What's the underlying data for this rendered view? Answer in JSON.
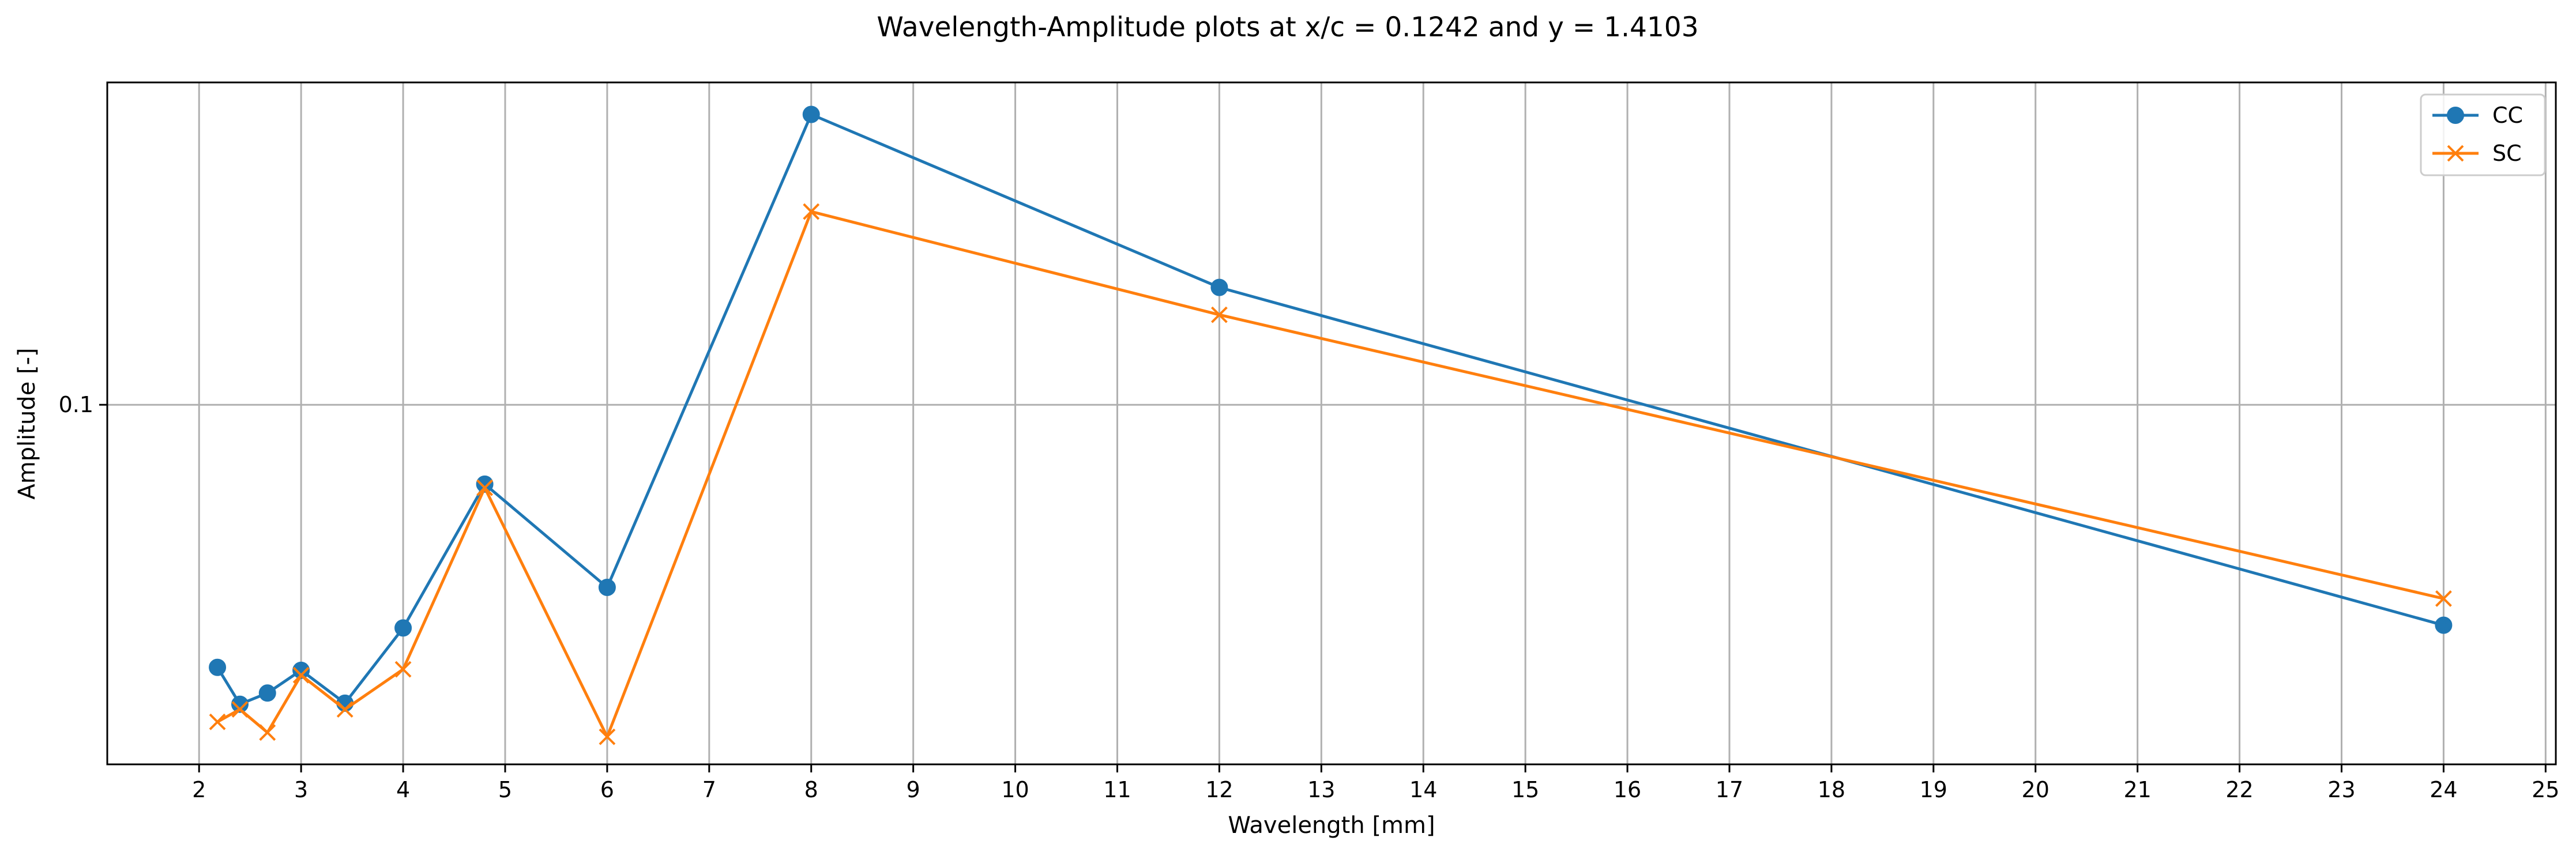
{
  "chart_data": {
    "type": "line",
    "title": "Wavelength-Amplitude plots at x/c = 0.1242 and y = 1.4103",
    "xlabel": "Wavelength [mm]",
    "ylabel": "Amplitude [-]",
    "xlim": [
      1.1,
      25.1
    ],
    "ylim": [
      0.0572,
      0.165
    ],
    "yscale": "log",
    "grid": true,
    "legend_position": "upper-right",
    "xticks": [
      2,
      3,
      4,
      5,
      6,
      7,
      8,
      9,
      10,
      11,
      12,
      13,
      14,
      15,
      16,
      17,
      18,
      19,
      20,
      21,
      22,
      23,
      24,
      25
    ],
    "yticks": [
      0.1
    ],
    "ytick_labels": [
      "0.1"
    ],
    "series": [
      {
        "name": "CC",
        "color": "#1f77b4",
        "marker": "circle",
        "x": [
          2.18,
          2.4,
          2.67,
          3.0,
          3.43,
          4.0,
          4.8,
          6.0,
          8.0,
          12.0,
          24.0
        ],
        "y": [
          0.0665,
          0.0628,
          0.0639,
          0.0662,
          0.0629,
          0.0707,
          0.0884,
          0.0753,
          0.157,
          0.12,
          0.071
        ]
      },
      {
        "name": "SC",
        "color": "#ff7f0e",
        "marker": "x",
        "x": [
          2.18,
          2.4,
          2.67,
          3.0,
          3.43,
          4.0,
          4.8,
          6.0,
          8.0,
          12.0,
          24.0
        ],
        "y": [
          0.0611,
          0.0623,
          0.0601,
          0.0657,
          0.0623,
          0.0663,
          0.0879,
          0.0597,
          0.135,
          0.115,
          0.074
        ]
      }
    ]
  }
}
